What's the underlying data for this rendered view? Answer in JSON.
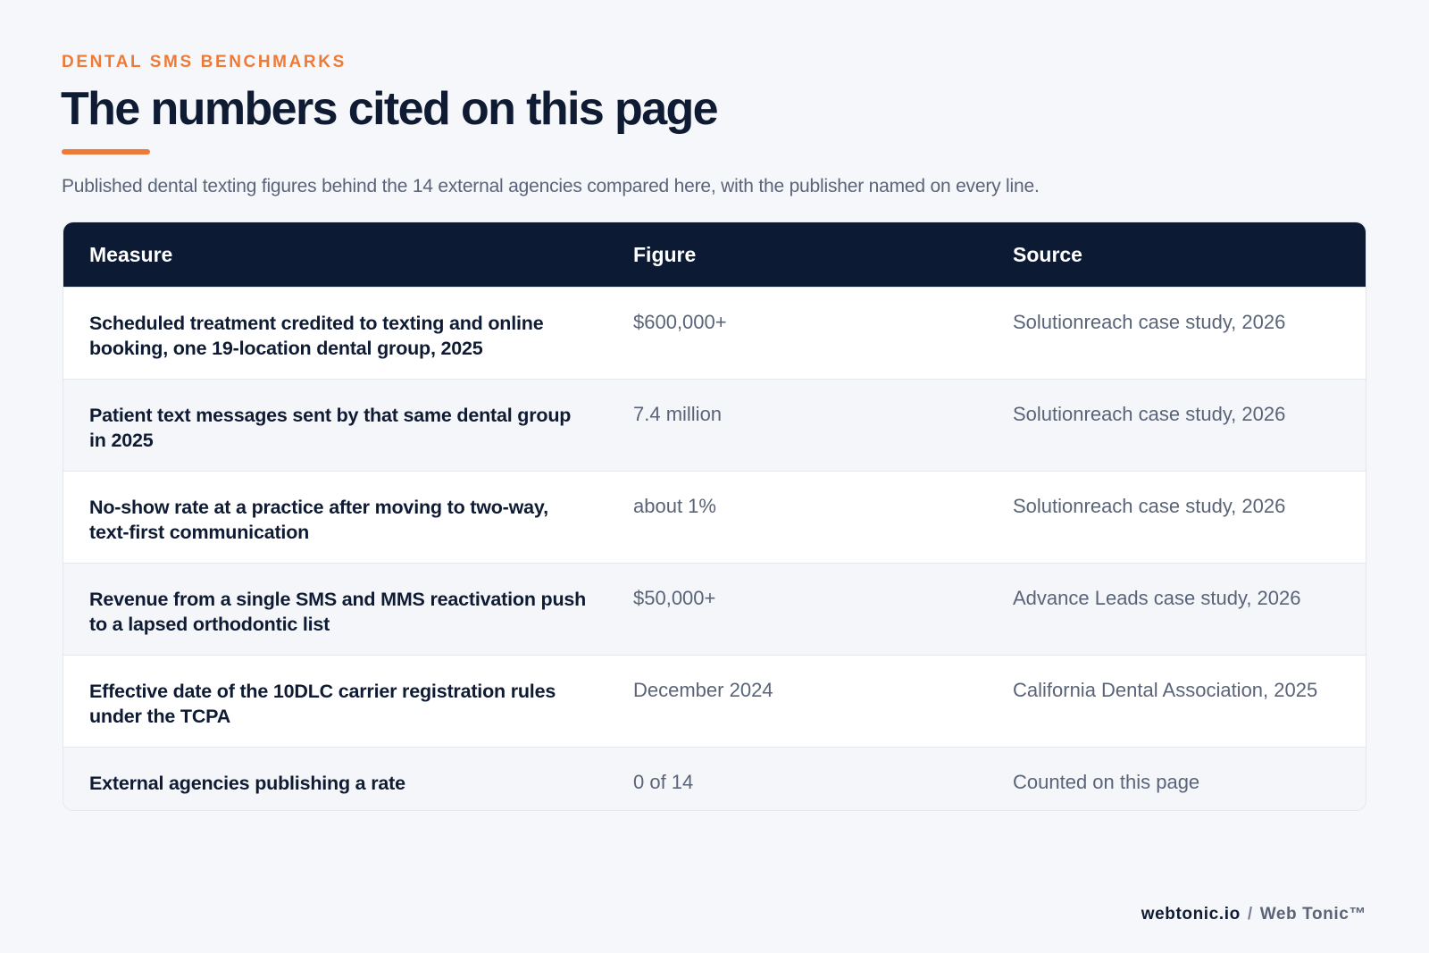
{
  "header": {
    "eyebrow": "DENTAL SMS BENCHMARKS",
    "title": "The numbers cited on this page",
    "subtitle": "Published dental texting figures behind the 14 external agencies compared here, with the publisher named on every line."
  },
  "table": {
    "columns": [
      "Measure",
      "Figure",
      "Source"
    ],
    "rows": [
      {
        "measure": "Scheduled treatment credited to texting and online booking, one 19-location dental group, 2025",
        "figure": "$600,000+",
        "source": "Solutionreach case study, 2026"
      },
      {
        "measure": "Patient text messages sent by that same dental group in 2025",
        "figure": "7.4 million",
        "source": "Solutionreach case study, 2026"
      },
      {
        "measure": "No-show rate at a practice after moving to two-way, text-first communication",
        "figure": "about 1%",
        "source": "Solutionreach case study, 2026"
      },
      {
        "measure": "Revenue from a single SMS and MMS reactivation push to a lapsed orthodontic list",
        "figure": "$50,000+",
        "source": "Advance Leads case study, 2026"
      },
      {
        "measure": "Effective date of the 10DLC carrier registration rules under the TCPA",
        "figure": "December 2024",
        "source": "California Dental Association, 2025"
      },
      {
        "measure": "External agencies publishing a rate",
        "figure": "0 of 14",
        "source": "Counted on this page"
      }
    ]
  },
  "footer": {
    "domain": "webtonic.io",
    "separator": "/",
    "brand": "Web Tonic™"
  },
  "colors": {
    "accent": "#ee7a38",
    "header_bg": "#0c1a33",
    "page_bg": "#f6f7fa"
  }
}
